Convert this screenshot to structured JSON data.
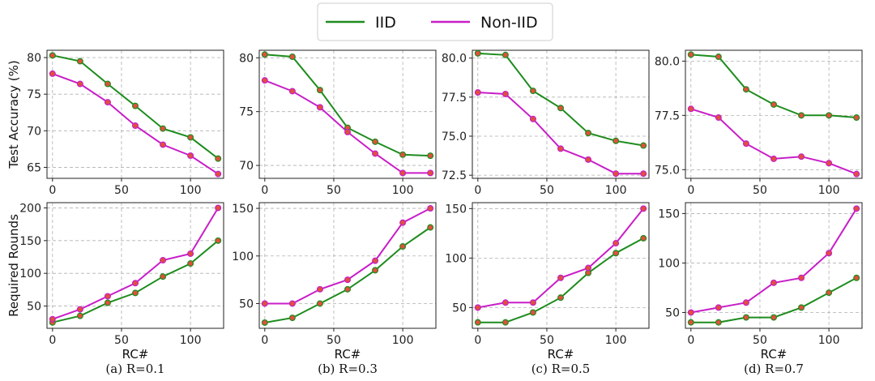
{
  "legend": {
    "items": [
      {
        "label": "IID",
        "color": "#1e8c1e"
      },
      {
        "label": "Non-IID",
        "color": "#c81ec8"
      }
    ],
    "placement": "top-center"
  },
  "marker_color": "#e0503c",
  "grid": true,
  "chart_data": [
    {
      "type": "line",
      "caption": "(a) R=0.1",
      "ylabel": "Test Accuracy (%)",
      "xlabel": "",
      "x": [
        0,
        20,
        40,
        60,
        80,
        100,
        120
      ],
      "xticks": [
        0,
        50,
        100
      ],
      "ylim": [
        63.5,
        81
      ],
      "yticks": [
        65,
        70,
        75,
        80
      ],
      "yticklabels": [
        "65",
        "70",
        "75",
        "80"
      ],
      "series": [
        {
          "name": "IID",
          "values": [
            80.3,
            79.5,
            76.4,
            73.4,
            70.3,
            69.1,
            66.2
          ]
        },
        {
          "name": "Non-IID",
          "values": [
            77.8,
            76.4,
            73.9,
            70.7,
            68.1,
            66.6,
            64.1
          ]
        }
      ]
    },
    {
      "type": "line",
      "caption": "(b) R=0.3",
      "ylabel": "",
      "xlabel": "",
      "x": [
        0,
        20,
        40,
        60,
        80,
        100,
        120
      ],
      "xticks": [
        0,
        50,
        100
      ],
      "ylim": [
        68.8,
        80.7
      ],
      "yticks": [
        70,
        75,
        80
      ],
      "yticklabels": [
        "70",
        "75",
        "80"
      ],
      "series": [
        {
          "name": "IID",
          "values": [
            80.3,
            80.1,
            77.0,
            73.5,
            72.2,
            71.0,
            70.9
          ]
        },
        {
          "name": "Non-IID",
          "values": [
            77.9,
            76.9,
            75.4,
            73.1,
            71.1,
            69.3,
            69.3
          ]
        }
      ]
    },
    {
      "type": "line",
      "caption": "(c) R=0.5",
      "ylabel": "",
      "xlabel": "",
      "x": [
        0,
        20,
        40,
        60,
        80,
        100,
        120
      ],
      "xticks": [
        0,
        50,
        100
      ],
      "ylim": [
        72.3,
        80.5
      ],
      "yticks": [
        72.5,
        75.0,
        77.5,
        80.0
      ],
      "yticklabels": [
        "72.5",
        "75.0",
        "77.5",
        "80.0"
      ],
      "series": [
        {
          "name": "IID",
          "values": [
            80.3,
            80.2,
            77.9,
            76.8,
            75.2,
            74.7,
            74.4
          ]
        },
        {
          "name": "Non-IID",
          "values": [
            77.8,
            77.7,
            76.1,
            74.2,
            73.5,
            72.6,
            72.6
          ]
        }
      ]
    },
    {
      "type": "line",
      "caption": "(d) R=0.7",
      "ylabel": "",
      "xlabel": "",
      "x": [
        0,
        20,
        40,
        60,
        80,
        100,
        120
      ],
      "xticks": [
        0,
        50,
        100
      ],
      "ylim": [
        74.6,
        80.5
      ],
      "yticks": [
        75.0,
        77.5,
        80.0
      ],
      "yticklabels": [
        "75.0",
        "77.5",
        "80.0"
      ],
      "series": [
        {
          "name": "IID",
          "values": [
            80.3,
            80.2,
            78.7,
            78.0,
            77.5,
            77.5,
            77.4
          ]
        },
        {
          "name": "Non-IID",
          "values": [
            77.8,
            77.4,
            76.2,
            75.5,
            75.6,
            75.3,
            74.8
          ]
        }
      ]
    },
    {
      "type": "line",
      "caption": "",
      "ylabel": "Required Rounds",
      "xlabel": "RC#",
      "x": [
        0,
        20,
        40,
        60,
        80,
        100,
        120
      ],
      "xticks": [
        0,
        50,
        100
      ],
      "ylim": [
        16,
        208
      ],
      "yticks": [
        50,
        100,
        150,
        200
      ],
      "yticklabels": [
        "50",
        "100",
        "150",
        "200"
      ],
      "series": [
        {
          "name": "IID",
          "values": [
            25,
            35,
            55,
            70,
            95,
            115,
            150
          ]
        },
        {
          "name": "Non-IID",
          "values": [
            30,
            45,
            65,
            85,
            120,
            130,
            200
          ]
        }
      ]
    },
    {
      "type": "line",
      "caption": "",
      "ylabel": "",
      "xlabel": "RC#",
      "x": [
        0,
        20,
        40,
        60,
        80,
        100,
        120
      ],
      "xticks": [
        0,
        50,
        100
      ],
      "ylim": [
        24,
        156
      ],
      "yticks": [
        50,
        100,
        150
      ],
      "yticklabels": [
        "50",
        "100",
        "150"
      ],
      "series": [
        {
          "name": "IID",
          "values": [
            30,
            35,
            50,
            65,
            85,
            110,
            130
          ]
        },
        {
          "name": "Non-IID",
          "values": [
            50,
            50,
            65,
            75,
            95,
            135,
            150
          ]
        }
      ]
    },
    {
      "type": "line",
      "caption": "",
      "ylabel": "",
      "xlabel": "RC#",
      "x": [
        0,
        20,
        40,
        60,
        80,
        100,
        120
      ],
      "xticks": [
        0,
        50,
        100
      ],
      "ylim": [
        29,
        156
      ],
      "yticks": [
        50,
        100,
        150
      ],
      "yticklabels": [
        "50",
        "100",
        "150"
      ],
      "series": [
        {
          "name": "IID",
          "values": [
            35,
            35,
            45,
            60,
            85,
            105,
            120
          ]
        },
        {
          "name": "Non-IID",
          "values": [
            50,
            55,
            55,
            80,
            90,
            115,
            150
          ]
        }
      ]
    },
    {
      "type": "line",
      "caption": "",
      "ylabel": "",
      "xlabel": "RC#",
      "x": [
        0,
        20,
        40,
        60,
        80,
        100,
        120
      ],
      "xticks": [
        0,
        50,
        100
      ],
      "ylim": [
        34,
        161
      ],
      "yticks": [
        50,
        100,
        150
      ],
      "yticklabels": [
        "50",
        "100",
        "150"
      ],
      "series": [
        {
          "name": "IID",
          "values": [
            40,
            40,
            45,
            45,
            55,
            70,
            85
          ]
        },
        {
          "name": "Non-IID",
          "values": [
            50,
            55,
            60,
            80,
            85,
            110,
            155
          ]
        }
      ]
    }
  ]
}
